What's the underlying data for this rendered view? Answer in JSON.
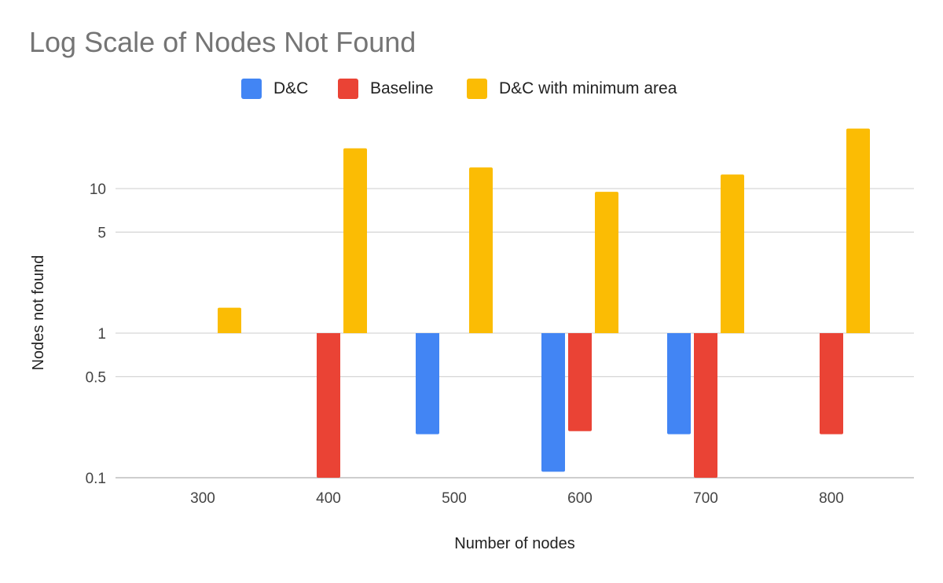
{
  "chart_data": {
    "type": "bar",
    "title": "Log Scale of Nodes Not Found",
    "xlabel": "Number of nodes",
    "ylabel": "Nodes not found",
    "yscale": "log",
    "ylim": [
      0.1,
      30
    ],
    "yticks": [
      {
        "value": 0.1,
        "label": "0.1"
      },
      {
        "value": 0.5,
        "label": "0.5"
      },
      {
        "value": 1,
        "label": "1"
      },
      {
        "value": 5,
        "label": "5"
      },
      {
        "value": 10,
        "label": "10"
      }
    ],
    "grid": true,
    "legend_position": "top",
    "bar_baseline": 1,
    "categories": [
      "300",
      "400",
      "500",
      "600",
      "700",
      "800"
    ],
    "series": [
      {
        "name": "D&C",
        "color": "#4285f4",
        "values": [
          null,
          null,
          0.2,
          0.11,
          0.2,
          null
        ]
      },
      {
        "name": "Baseline",
        "color": "#ea4335",
        "values": [
          null,
          0.1,
          null,
          0.21,
          0.1,
          0.2
        ]
      },
      {
        "name": "D&C with minimum area",
        "color": "#fbbc04",
        "values": [
          1.5,
          19,
          14,
          9.5,
          12.5,
          26
        ]
      }
    ]
  }
}
